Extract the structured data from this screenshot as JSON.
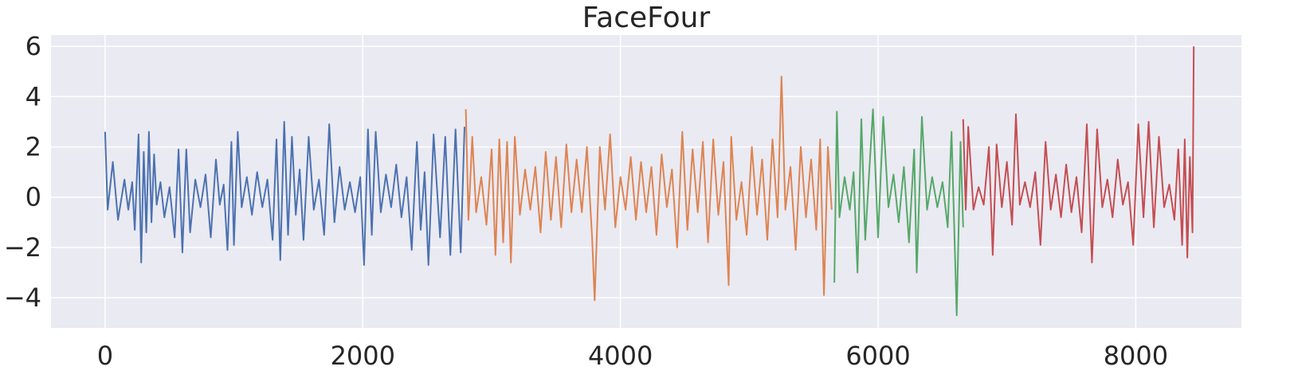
{
  "chart_data": {
    "type": "line",
    "title": "FaceFour",
    "xlabel": "",
    "ylabel": "",
    "xlim": [
      -420,
      8820
    ],
    "ylim": [
      -5.2,
      6.45
    ],
    "xticks": [
      0,
      2000,
      4000,
      6000,
      8000
    ],
    "yticks": [
      -4,
      -2,
      0,
      2,
      4,
      6
    ],
    "grid": true,
    "background_color": "#eaeaf2",
    "colors": [
      "#4c72b0",
      "#dd8452",
      "#55a868",
      "#c44e52"
    ],
    "series": [
      {
        "color": "#4c72b0",
        "x": [
          0,
          20,
          60,
          100,
          150,
          180,
          210,
          230,
          260,
          280,
          300,
          320,
          340,
          360,
          380,
          400,
          430,
          460,
          500,
          540,
          570,
          600,
          630,
          660,
          700,
          740,
          780,
          820,
          860,
          890,
          920,
          950,
          980,
          1000,
          1030,
          1060,
          1100,
          1140,
          1180,
          1220,
          1260,
          1300,
          1330,
          1360,
          1390,
          1420,
          1450,
          1480,
          1510,
          1540,
          1580,
          1620,
          1660,
          1700,
          1740,
          1780,
          1820,
          1860,
          1900,
          1940,
          1980,
          2010,
          2040,
          2070,
          2100,
          2140,
          2180,
          2220,
          2260,
          2300,
          2340,
          2380,
          2420,
          2450,
          2480,
          2510,
          2550,
          2600,
          2640,
          2680,
          2720,
          2760,
          2790
        ],
        "y": [
          2.6,
          -0.5,
          1.4,
          -0.9,
          0.7,
          -0.5,
          0.6,
          -1.3,
          2.5,
          -2.6,
          1.8,
          -1.4,
          2.6,
          -1.0,
          1.7,
          -0.3,
          0.6,
          -0.8,
          0.4,
          -1.6,
          1.9,
          -2.2,
          1.9,
          -1.4,
          0.7,
          -0.4,
          0.9,
          -1.6,
          1.5,
          -0.3,
          0.5,
          -2.1,
          2.2,
          -1.9,
          2.6,
          -0.4,
          0.8,
          -0.7,
          1.0,
          -0.4,
          0.7,
          -1.7,
          2.3,
          -2.5,
          3.0,
          -1.5,
          2.4,
          -0.7,
          1.1,
          -1.7,
          2.4,
          -0.5,
          0.7,
          -1.5,
          2.9,
          -1.0,
          1.2,
          -0.5,
          0.6,
          -0.6,
          0.8,
          -2.7,
          2.7,
          -1.5,
          2.6,
          -0.6,
          0.9,
          -0.4,
          1.3,
          -0.8,
          0.8,
          -2.1,
          2.2,
          -1.3,
          1.0,
          -2.7,
          2.5,
          -1.6,
          2.4,
          -2.3,
          2.7,
          -2.2,
          2.8
        ]
      },
      {
        "color": "#dd8452",
        "x": [
          2800,
          2820,
          2850,
          2880,
          2920,
          2960,
          3000,
          3030,
          3060,
          3090,
          3120,
          3150,
          3180,
          3220,
          3260,
          3300,
          3340,
          3380,
          3420,
          3460,
          3500,
          3540,
          3580,
          3620,
          3660,
          3700,
          3740,
          3780,
          3800,
          3840,
          3880,
          3920,
          3960,
          4000,
          4040,
          4080,
          4120,
          4160,
          4200,
          4240,
          4280,
          4320,
          4360,
          4400,
          4440,
          4480,
          4520,
          4560,
          4600,
          4640,
          4680,
          4720,
          4760,
          4800,
          4840,
          4860,
          4900,
          4940,
          4980,
          5020,
          5060,
          5100,
          5140,
          5180,
          5220,
          5250,
          5280,
          5320,
          5360,
          5400,
          5440,
          5480,
          5520,
          5550,
          5580,
          5610,
          5640
        ],
        "y": [
          3.5,
          -0.9,
          2.4,
          -0.6,
          0.8,
          -1.1,
          1.9,
          -2.3,
          2.3,
          -1.8,
          2.2,
          -2.6,
          2.4,
          -0.7,
          1.1,
          -0.5,
          1.2,
          -1.4,
          1.8,
          -0.9,
          1.6,
          -1.2,
          2.1,
          -0.6,
          1.5,
          -0.6,
          2.0,
          -1.6,
          -4.1,
          2.0,
          -0.5,
          2.5,
          -1.2,
          0.8,
          -0.5,
          1.6,
          -0.9,
          1.4,
          -0.6,
          1.2,
          -1.5,
          1.7,
          -0.4,
          1.1,
          -2.0,
          2.6,
          -1.3,
          1.9,
          -0.6,
          2.2,
          -1.8,
          2.3,
          -0.7,
          1.4,
          -3.5,
          2.4,
          -0.9,
          0.6,
          -1.5,
          2.0,
          -0.7,
          1.5,
          -1.7,
          2.3,
          -0.8,
          4.8,
          -0.5,
          1.2,
          -2.1,
          2.0,
          -0.8,
          1.5,
          -1.3,
          2.3,
          -3.9,
          2.0,
          -0.5
        ]
      },
      {
        "color": "#55a868",
        "x": [
          5660,
          5680,
          5700,
          5740,
          5780,
          5810,
          5840,
          5870,
          5900,
          5930,
          5960,
          6000,
          6040,
          6080,
          6120,
          6160,
          6200,
          6240,
          6280,
          6300,
          6340,
          6380,
          6420,
          6460,
          6500,
          6540,
          6570,
          6590,
          6610,
          6640,
          6660
        ],
        "y": [
          -3.4,
          3.4,
          -0.8,
          0.8,
          -0.5,
          1.0,
          -3.0,
          3.1,
          -1.7,
          0.9,
          3.5,
          -1.6,
          3.2,
          -0.4,
          0.9,
          -1.0,
          1.2,
          -1.8,
          1.9,
          -3.0,
          3.2,
          -0.5,
          0.8,
          -0.4,
          0.6,
          -1.2,
          2.6,
          -1.0,
          -4.7,
          2.2,
          -1.2
        ]
      },
      {
        "color": "#c44e52",
        "x": [
          6660,
          6680,
          6700,
          6740,
          6780,
          6820,
          6860,
          6890,
          6920,
          6960,
          7000,
          7040,
          7070,
          7100,
          7140,
          7180,
          7220,
          7260,
          7300,
          7340,
          7380,
          7420,
          7460,
          7500,
          7540,
          7580,
          7620,
          7660,
          7700,
          7740,
          7780,
          7820,
          7860,
          7900,
          7940,
          7980,
          8020,
          8060,
          8100,
          8140,
          8180,
          8220,
          8260,
          8300,
          8330,
          8360,
          8380,
          8400,
          8420,
          8440,
          8450
        ],
        "y": [
          3.1,
          -0.5,
          2.8,
          -0.5,
          0.4,
          -0.3,
          2.0,
          -2.3,
          2.1,
          -0.4,
          1.4,
          -1.1,
          3.3,
          -0.3,
          0.6,
          -0.4,
          1.0,
          -1.9,
          2.2,
          -0.5,
          0.9,
          -0.8,
          1.3,
          -0.6,
          0.8,
          -1.4,
          2.9,
          -2.6,
          2.7,
          -0.4,
          0.7,
          -0.8,
          1.5,
          -0.3,
          0.6,
          -1.9,
          2.9,
          -0.8,
          3.0,
          -1.2,
          2.4,
          -0.4,
          0.5,
          -0.9,
          1.9,
          -1.9,
          2.3,
          -2.4,
          1.6,
          -1.4,
          6.0
        ]
      }
    ]
  }
}
